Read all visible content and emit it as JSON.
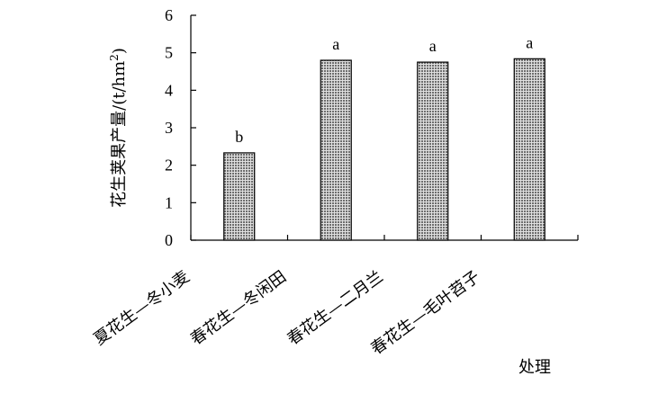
{
  "chart_data": {
    "type": "bar",
    "categories": [
      "夏花生—冬小麦",
      "春花生—冬闲田",
      "春花生—二月兰",
      "春花生—毛叶苕子"
    ],
    "values": [
      2.33,
      4.8,
      4.75,
      4.84
    ],
    "significance": [
      "b",
      "a",
      "a",
      "a"
    ],
    "xlabel": "处理",
    "ylabel": {
      "main": "花生荚果产量/(t/hm",
      "sup": "2",
      "end": ")"
    },
    "ylim": [
      0,
      6
    ],
    "yticks": [
      0,
      1,
      2,
      3,
      4,
      5,
      6
    ],
    "grid": false,
    "bar_fill": "#b4b4b4",
    "bar_stroke": "#000000"
  }
}
